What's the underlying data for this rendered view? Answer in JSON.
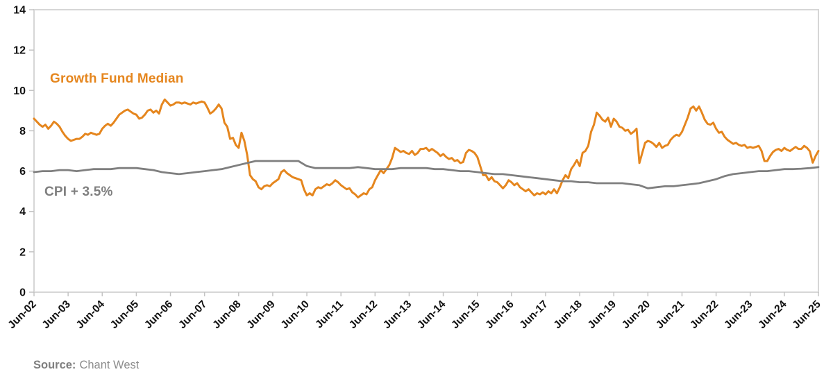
{
  "chart_data": {
    "type": "line",
    "title": "",
    "xlabel": "",
    "ylabel": "",
    "grid": false,
    "legend_position": "inline-labels",
    "x_axis": {
      "start_year": 2002.4167,
      "end_year": 2025.4167,
      "tick_labels": [
        "Jun-02",
        "Jun-03",
        "Jun-04",
        "Jun-05",
        "Jun-06",
        "Jun-07",
        "Jun-08",
        "Jun-09",
        "Jun-10",
        "Jun-11",
        "Jun-12",
        "Jun-13",
        "Jun-14",
        "Jun-15",
        "Jun-16",
        "Jun-17",
        "Jun-18",
        "Jun-19",
        "Jun-20",
        "Jun-21",
        "Jun-22",
        "Jun-23",
        "Jun-24",
        "Jun-25"
      ]
    },
    "y_axis": {
      "min": 0,
      "max": 14,
      "ticks": [
        0,
        2,
        4,
        6,
        8,
        10,
        12,
        14
      ]
    },
    "series": [
      {
        "name": "Growth Fund Median",
        "color": "#E5861E",
        "width": 3,
        "start_year": 2002.4167,
        "step_years": 0.083333,
        "frequency": "monthly",
        "values": [
          8.6,
          8.45,
          8.3,
          8.2,
          8.3,
          8.1,
          8.25,
          8.45,
          8.35,
          8.2,
          7.95,
          7.75,
          7.6,
          7.5,
          7.55,
          7.6,
          7.6,
          7.7,
          7.85,
          7.8,
          7.9,
          7.85,
          7.8,
          7.85,
          8.1,
          8.25,
          8.35,
          8.25,
          8.4,
          8.6,
          8.8,
          8.9,
          9.0,
          9.05,
          8.95,
          8.85,
          8.8,
          8.6,
          8.65,
          8.8,
          9.0,
          9.05,
          8.9,
          9.0,
          8.85,
          9.3,
          9.55,
          9.4,
          9.25,
          9.3,
          9.4,
          9.4,
          9.35,
          9.4,
          9.35,
          9.3,
          9.4,
          9.35,
          9.4,
          9.45,
          9.4,
          9.15,
          8.85,
          8.95,
          9.1,
          9.3,
          9.1,
          8.4,
          8.2,
          7.6,
          7.65,
          7.3,
          7.15,
          7.9,
          7.5,
          6.8,
          5.8,
          5.6,
          5.5,
          5.2,
          5.1,
          5.25,
          5.3,
          5.25,
          5.4,
          5.5,
          5.6,
          5.95,
          6.05,
          5.9,
          5.8,
          5.7,
          5.65,
          5.6,
          5.55,
          5.1,
          4.8,
          4.9,
          4.8,
          5.1,
          5.2,
          5.15,
          5.25,
          5.35,
          5.3,
          5.4,
          5.55,
          5.45,
          5.3,
          5.2,
          5.1,
          5.15,
          4.95,
          4.85,
          4.7,
          4.8,
          4.9,
          4.85,
          5.1,
          5.2,
          5.55,
          5.8,
          6.05,
          5.9,
          6.1,
          6.3,
          6.65,
          7.15,
          7.05,
          6.95,
          7.0,
          6.9,
          6.85,
          7.0,
          6.8,
          6.9,
          7.1,
          7.1,
          7.15,
          7.0,
          7.1,
          7.0,
          6.9,
          6.75,
          6.85,
          6.7,
          6.6,
          6.65,
          6.5,
          6.55,
          6.4,
          6.45,
          6.9,
          7.05,
          7.0,
          6.9,
          6.7,
          6.25,
          5.8,
          5.8,
          5.55,
          5.7,
          5.5,
          5.45,
          5.3,
          5.15,
          5.3,
          5.55,
          5.45,
          5.3,
          5.4,
          5.2,
          5.1,
          5.0,
          5.1,
          4.95,
          4.8,
          4.9,
          4.85,
          4.95,
          4.85,
          5.0,
          4.9,
          5.1,
          4.9,
          5.2,
          5.55,
          5.8,
          5.65,
          6.1,
          6.3,
          6.55,
          6.25,
          6.9,
          7.0,
          7.25,
          7.95,
          8.3,
          8.9,
          8.75,
          8.55,
          8.45,
          8.65,
          8.2,
          8.6,
          8.45,
          8.2,
          8.15,
          8.0,
          8.05,
          7.85,
          7.95,
          8.1,
          6.4,
          6.9,
          7.4,
          7.5,
          7.45,
          7.35,
          7.2,
          7.4,
          7.15,
          7.25,
          7.3,
          7.55,
          7.7,
          7.8,
          7.75,
          7.95,
          8.3,
          8.65,
          9.1,
          9.2,
          9.0,
          9.2,
          8.9,
          8.55,
          8.35,
          8.3,
          8.4,
          8.1,
          7.9,
          7.95,
          7.7,
          7.55,
          7.45,
          7.35,
          7.4,
          7.3,
          7.25,
          7.3,
          7.15,
          7.2,
          7.15,
          7.2,
          7.25,
          7.0,
          6.5,
          6.5,
          6.75,
          6.95,
          7.05,
          7.1,
          7.0,
          7.15,
          7.05,
          7.0,
          7.1,
          7.2,
          7.1,
          7.1,
          7.25,
          7.15,
          6.98,
          6.42,
          6.75,
          7.0
        ]
      },
      {
        "name": "CPI + 3.5%",
        "color": "#7F7F7F",
        "width": 2.8,
        "start_year": 2002.4167,
        "step_years": 0.25,
        "frequency": "quarterly",
        "values": [
          5.95,
          6.0,
          6.0,
          6.05,
          6.05,
          6.0,
          6.05,
          6.1,
          6.1,
          6.1,
          6.15,
          6.15,
          6.15,
          6.1,
          6.05,
          5.95,
          5.9,
          5.85,
          5.9,
          5.95,
          6.0,
          6.05,
          6.1,
          6.2,
          6.3,
          6.4,
          6.5,
          6.5,
          6.5,
          6.5,
          6.5,
          6.5,
          6.25,
          6.15,
          6.15,
          6.15,
          6.15,
          6.15,
          6.2,
          6.15,
          6.1,
          6.1,
          6.1,
          6.15,
          6.15,
          6.15,
          6.15,
          6.1,
          6.1,
          6.05,
          6.0,
          6.0,
          5.95,
          5.9,
          5.85,
          5.85,
          5.8,
          5.75,
          5.7,
          5.65,
          5.6,
          5.55,
          5.5,
          5.5,
          5.45,
          5.45,
          5.4,
          5.4,
          5.4,
          5.4,
          5.35,
          5.3,
          5.15,
          5.2,
          5.25,
          5.25,
          5.3,
          5.35,
          5.4,
          5.5,
          5.6,
          5.75,
          5.85,
          5.9,
          5.95,
          6.0,
          6.0,
          6.05,
          6.1,
          6.1,
          6.12,
          6.15,
          6.2
        ]
      }
    ],
    "source": {
      "label": "Source:",
      "text": "Chant West"
    }
  }
}
